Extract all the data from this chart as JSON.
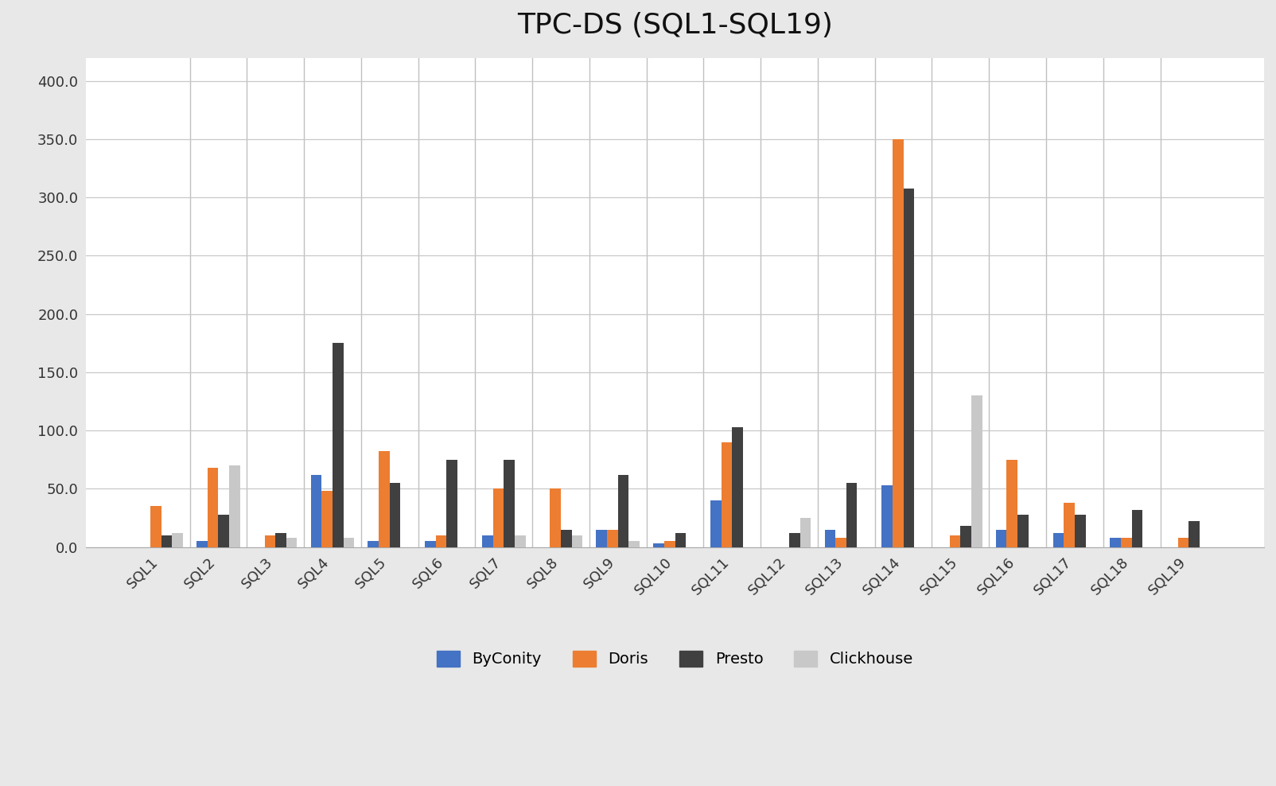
{
  "title": "TPC-DS (SQL1-SQL19)",
  "categories": [
    "SQL1",
    "SQL2",
    "SQL3",
    "SQL4",
    "SQL5",
    "SQL6",
    "SQL7",
    "SQL8",
    "SQL9",
    "SQL10",
    "SQL11",
    "SQL12",
    "SQL13",
    "SQL14",
    "SQL15",
    "SQL16",
    "SQL17",
    "SQL18",
    "SQL19"
  ],
  "series": {
    "ByConity": [
      0,
      5,
      0,
      62,
      5,
      5,
      10,
      0,
      15,
      3,
      40,
      0,
      15,
      53,
      0,
      15,
      12,
      8,
      0
    ],
    "Doris": [
      35,
      68,
      10,
      48,
      82,
      10,
      50,
      50,
      15,
      5,
      90,
      0,
      8,
      350,
      10,
      75,
      38,
      8,
      8
    ],
    "Presto": [
      10,
      28,
      12,
      175,
      55,
      75,
      75,
      15,
      62,
      12,
      103,
      12,
      55,
      308,
      18,
      28,
      28,
      32,
      22
    ],
    "Clickhouse": [
      12,
      70,
      8,
      8,
      0,
      0,
      10,
      10,
      5,
      0,
      0,
      25,
      0,
      0,
      130,
      0,
      0,
      0,
      0
    ]
  },
  "colors": {
    "ByConity": "#4472C4",
    "Doris": "#ED7D31",
    "Presto": "#404040",
    "Clickhouse": "#C8C8C8"
  },
  "ylim": [
    0,
    420
  ],
  "yticks": [
    0.0,
    50.0,
    100.0,
    150.0,
    200.0,
    250.0,
    300.0,
    350.0,
    400.0
  ],
  "background_color": "#e8e8e8",
  "plot_bg_color": "#ffffff",
  "title_fontsize": 26,
  "tick_fontsize": 13,
  "legend_fontsize": 14,
  "bar_width": 0.19,
  "grid_color": "#c8c8c8",
  "vgrid_color": "#c0c0c0"
}
